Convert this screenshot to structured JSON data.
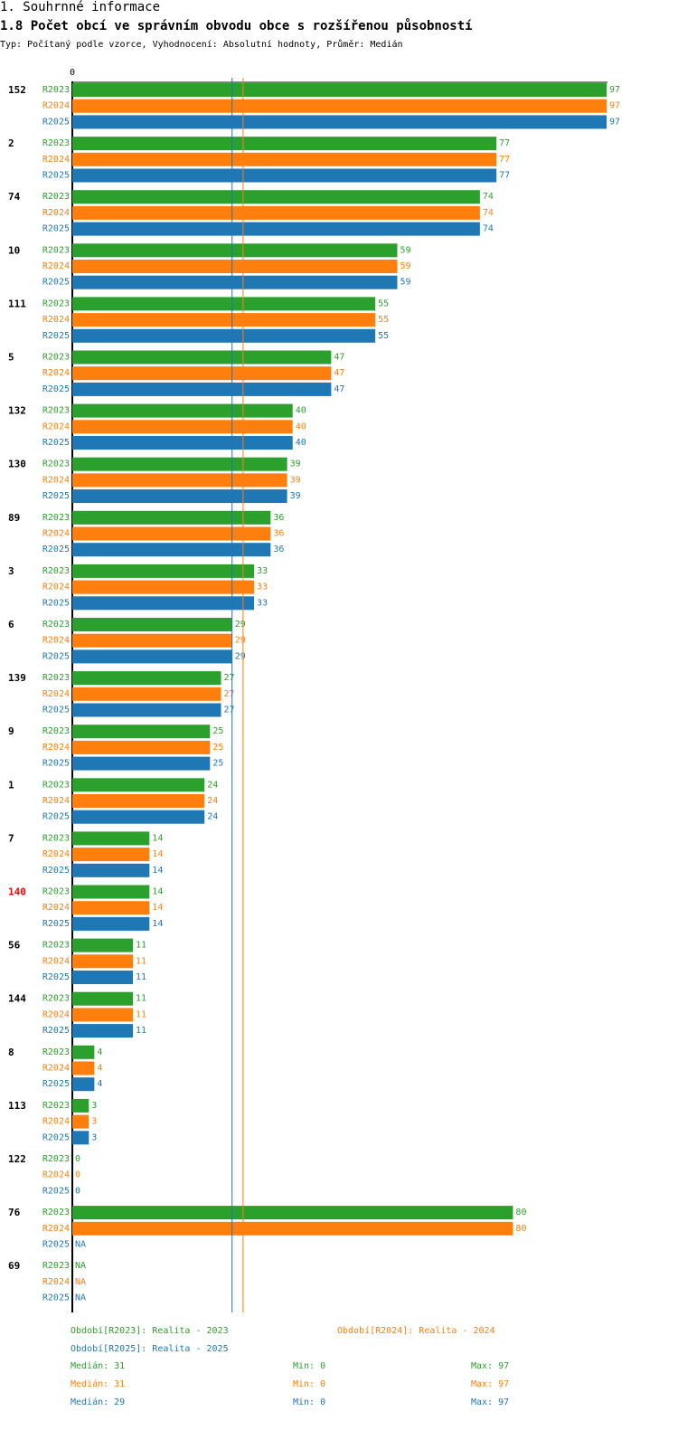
{
  "header": {
    "section": "1. Souhrnné informace",
    "title": "1.8 Počet obcí ve správním obvodu obce s rozšířenou působností",
    "subtitle": "Typ: Počítaný podle vzorce, Vyhodnocení: Absolutní hodnoty, Průměr: Medián"
  },
  "chart_data": {
    "type": "bar",
    "orientation": "horizontal",
    "title": "1.8 Počet obcí ve správním obvodu obce s rozšířenou působností",
    "x_tick_labels": [
      "0"
    ],
    "xlim": [
      0,
      97
    ],
    "categories": [
      "152",
      "2",
      "74",
      "10",
      "111",
      "5",
      "132",
      "130",
      "89",
      "3",
      "6",
      "139",
      "9",
      "1",
      "7",
      "140",
      "56",
      "144",
      "8",
      "113",
      "122",
      "76",
      "69"
    ],
    "highlight_category": "140",
    "na_label": "NA",
    "series": [
      {
        "name": "R2023",
        "color": "#2ca02c",
        "values": [
          97,
          77,
          74,
          59,
          55,
          47,
          40,
          39,
          36,
          33,
          29,
          27,
          25,
          24,
          14,
          14,
          11,
          11,
          4,
          3,
          0,
          80,
          null
        ]
      },
      {
        "name": "R2024",
        "color": "#ff7f0e",
        "values": [
          97,
          77,
          74,
          59,
          55,
          47,
          40,
          39,
          36,
          33,
          29,
          27,
          25,
          24,
          14,
          14,
          11,
          11,
          4,
          3,
          0,
          80,
          null
        ]
      },
      {
        "name": "R2025",
        "color": "#1f77b4",
        "values": [
          97,
          77,
          74,
          59,
          55,
          47,
          40,
          39,
          36,
          33,
          29,
          27,
          25,
          24,
          14,
          14,
          11,
          11,
          4,
          3,
          0,
          null,
          null
        ]
      }
    ],
    "reference_lines": [
      {
        "name": "median-R2024",
        "value": 31,
        "color": "#ff7f0e"
      },
      {
        "name": "median-R2025",
        "value": 29,
        "color": "#1f77b4"
      }
    ]
  },
  "legend": {
    "periods": [
      {
        "label": "Období[R2023]: Realita - 2023",
        "color": "#2ca02c"
      },
      {
        "label": "Období[R2024]: Realita - 2024",
        "color": "#ff7f0e"
      },
      {
        "label": "Období[R2025]: Realita - 2025",
        "color": "#1f77b4"
      }
    ],
    "stats": [
      {
        "median": "Medián: 31",
        "min": "Min: 0",
        "max": "Max: 97",
        "color": "#2ca02c"
      },
      {
        "median": "Medián: 31",
        "min": "Min: 0",
        "max": "Max: 97",
        "color": "#ff7f0e"
      },
      {
        "median": "Medián: 29",
        "min": "Min: 0",
        "max": "Max: 97",
        "color": "#1f77b4"
      }
    ]
  }
}
